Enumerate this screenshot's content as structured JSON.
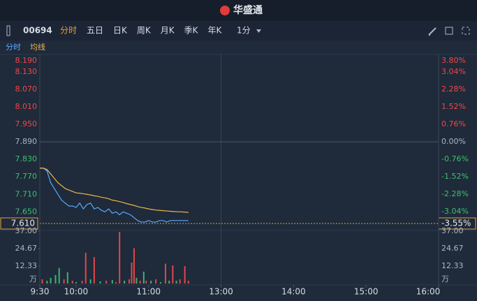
{
  "app": {
    "brand": "华盛通",
    "symbol": "00694",
    "periods": [
      "分时",
      "五日",
      "日K",
      "周K",
      "月K",
      "季K",
      "年K"
    ],
    "interval": "1分",
    "sub_tabs": [
      "分时",
      "均线"
    ]
  },
  "chart_data": {
    "type": "line",
    "xlim": [
      0,
      330
    ],
    "xticks": [
      {
        "value": 0,
        "label": "9:30"
      },
      {
        "value": 30,
        "label": "10:00"
      },
      {
        "value": 90,
        "label": "11:00"
      },
      {
        "value": 150,
        "label": "13:00"
      },
      {
        "value": 210,
        "label": "14:00"
      },
      {
        "value": 270,
        "label": "15:00"
      },
      {
        "value": 330,
        "label": "16:00"
      }
    ],
    "ylim": [
      7.61,
      8.19
    ],
    "yticks": [
      {
        "value": 8.19,
        "label": "8.190"
      },
      {
        "value": 8.13,
        "label": "8.130"
      },
      {
        "value": 8.07,
        "label": "8.070"
      },
      {
        "value": 8.01,
        "label": "8.010"
      },
      {
        "value": 7.95,
        "label": "7.950"
      },
      {
        "value": 7.89,
        "label": "7.890"
      },
      {
        "value": 7.83,
        "label": "7.830"
      },
      {
        "value": 7.77,
        "label": "7.770"
      },
      {
        "value": 7.71,
        "label": "7.710"
      },
      {
        "value": 7.65,
        "label": "7.650"
      },
      {
        "value": 7.61,
        "label": "7.610"
      }
    ],
    "y2lim": [
      -3.55,
      3.8
    ],
    "y2ticks": [
      {
        "value": 3.8,
        "label": "3.80%"
      },
      {
        "value": 3.04,
        "label": "3.04%"
      },
      {
        "value": 2.28,
        "label": "2.28%"
      },
      {
        "value": 1.52,
        "label": "1.52%"
      },
      {
        "value": 0.76,
        "label": "0.76%"
      },
      {
        "value": 0,
        "label": "0.00%"
      },
      {
        "value": -0.76,
        "label": "-0.76%"
      },
      {
        "value": -1.52,
        "label": "-1.52%"
      },
      {
        "value": -2.28,
        "label": "-2.28%"
      },
      {
        "value": -3.04,
        "label": "-3.04%"
      },
      {
        "value": -3.55,
        "label": "-3.55%"
      }
    ],
    "x": [
      0,
      3,
      6,
      9,
      12,
      15,
      18,
      21,
      24,
      27,
      30,
      33,
      36,
      39,
      42,
      45,
      48,
      51,
      54,
      57,
      60,
      63,
      66,
      69,
      72,
      75,
      78,
      81,
      84,
      87,
      90,
      93,
      96,
      99,
      102,
      105,
      108,
      111,
      114,
      117,
      120,
      123
    ],
    "series": [
      {
        "name": "分时",
        "color": "#5aa9ff",
        "values": [
          7.8,
          7.8,
          7.79,
          7.75,
          7.73,
          7.71,
          7.69,
          7.68,
          7.67,
          7.67,
          7.665,
          7.68,
          7.66,
          7.675,
          7.68,
          7.66,
          7.665,
          7.655,
          7.65,
          7.66,
          7.645,
          7.65,
          7.64,
          7.65,
          7.645,
          7.64,
          7.63,
          7.62,
          7.615,
          7.615,
          7.62,
          7.615,
          7.615,
          7.62,
          7.62,
          7.615,
          7.62,
          7.62,
          7.62,
          7.62,
          7.62,
          7.62
        ]
      },
      {
        "name": "均线",
        "color": "#e8b64c",
        "values": [
          7.8,
          7.8,
          7.795,
          7.78,
          7.765,
          7.75,
          7.74,
          7.73,
          7.725,
          7.72,
          7.715,
          7.714,
          7.712,
          7.71,
          7.708,
          7.705,
          7.703,
          7.7,
          7.698,
          7.695,
          7.69,
          7.688,
          7.685,
          7.682,
          7.678,
          7.675,
          7.672,
          7.668,
          7.665,
          7.663,
          7.66,
          7.658,
          7.656,
          7.655,
          7.654,
          7.653,
          7.652,
          7.651,
          7.65,
          7.65,
          7.649,
          7.648
        ]
      }
    ],
    "volume": {
      "unit": "万",
      "ylim": [
        0,
        37
      ],
      "yticks": [
        {
          "value": 37,
          "label": "37.00"
        },
        {
          "value": 24.67,
          "label": "24.67"
        },
        {
          "value": 12.33,
          "label": "12.33"
        }
      ],
      "x": [
        2,
        6,
        9,
        13,
        16,
        20,
        23,
        27,
        30,
        35,
        38,
        42,
        45,
        50,
        55,
        60,
        63,
        66,
        70,
        74,
        76,
        78,
        80,
        83,
        86,
        88,
        92,
        96,
        100,
        104,
        107,
        110,
        113,
        116,
        120,
        123
      ],
      "values": [
        3,
        2,
        4,
        6,
        11,
        3,
        8,
        2,
        1,
        2,
        21.7,
        3,
        18.7,
        1.5,
        2,
        2.5,
        1,
        36.5,
        2,
        3,
        14.8,
        25,
        4,
        2,
        8.4,
        2,
        2,
        3,
        1,
        14,
        2,
        12.8,
        2,
        3,
        12.3,
        2
      ],
      "colors": [
        "#e04848",
        "#3cb371",
        "#3cb371",
        "#3cb371",
        "#3cb371",
        "#e04848",
        "#3cb371",
        "#e04848",
        "#3cb371",
        "#e04848",
        "#e04848",
        "#3cb371",
        "#e04848",
        "#3cb371",
        "#e04848",
        "#3cb371",
        "#e04848",
        "#e04848",
        "#3cb371",
        "#e04848",
        "#e04848",
        "#e04848",
        "#3cb371",
        "#e04848",
        "#3cb371",
        "#e04848",
        "#3cb371",
        "#e04848",
        "#3cb371",
        "#e04848",
        "#3cb371",
        "#e04848",
        "#3cb371",
        "#e04848",
        "#e04848",
        "#e04848"
      ]
    }
  }
}
